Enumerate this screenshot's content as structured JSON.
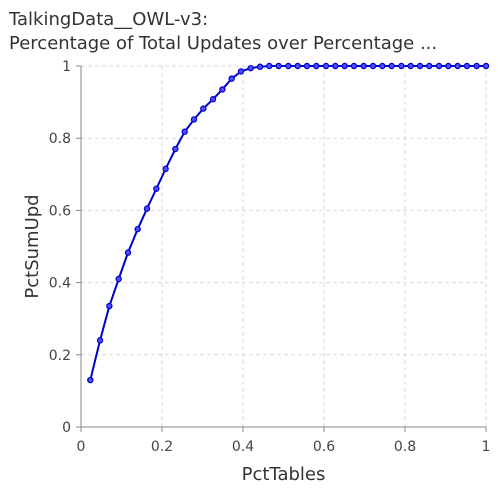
{
  "chart_data": {
    "type": "line",
    "title": "TalkingData__OWL-v3:",
    "subtitle": "Percentage of Total Updates over Percentage ...",
    "xlabel": "PctTables",
    "ylabel": "PctSumUpd",
    "xlim": [
      0,
      1
    ],
    "ylim": [
      0,
      1
    ],
    "x_ticks": [
      "0",
      "0.2",
      "0.4",
      "0.6",
      "0.8",
      "1"
    ],
    "y_ticks": [
      "0",
      "0.2",
      "0.4",
      "0.6",
      "0.8",
      "1"
    ],
    "grid": true,
    "legend": false,
    "line_color": "#0000cc",
    "series": [
      {
        "x": [
          0.023,
          0.047,
          0.07,
          0.093,
          0.116,
          0.14,
          0.163,
          0.186,
          0.209,
          0.233,
          0.256,
          0.279,
          0.302,
          0.326,
          0.349,
          0.372,
          0.395,
          0.419,
          0.442,
          0.465,
          0.488,
          0.512,
          0.535,
          0.558,
          0.581,
          0.605,
          0.628,
          0.651,
          0.674,
          0.698,
          0.721,
          0.744,
          0.767,
          0.791,
          0.814,
          0.837,
          0.86,
          0.884,
          0.907,
          0.93,
          0.953,
          0.977,
          1.0
        ],
        "y": [
          0.13,
          0.24,
          0.335,
          0.41,
          0.483,
          0.548,
          0.605,
          0.66,
          0.715,
          0.77,
          0.818,
          0.852,
          0.882,
          0.908,
          0.935,
          0.965,
          0.985,
          0.994,
          0.998,
          1.0,
          1.0,
          1.0,
          1.0,
          1.0,
          1.0,
          1.0,
          1.0,
          1.0,
          1.0,
          1.0,
          1.0,
          1.0,
          1.0,
          1.0,
          1.0,
          1.0,
          1.0,
          1.0,
          1.0,
          1.0,
          1.0,
          1.0,
          1.0
        ]
      }
    ]
  }
}
